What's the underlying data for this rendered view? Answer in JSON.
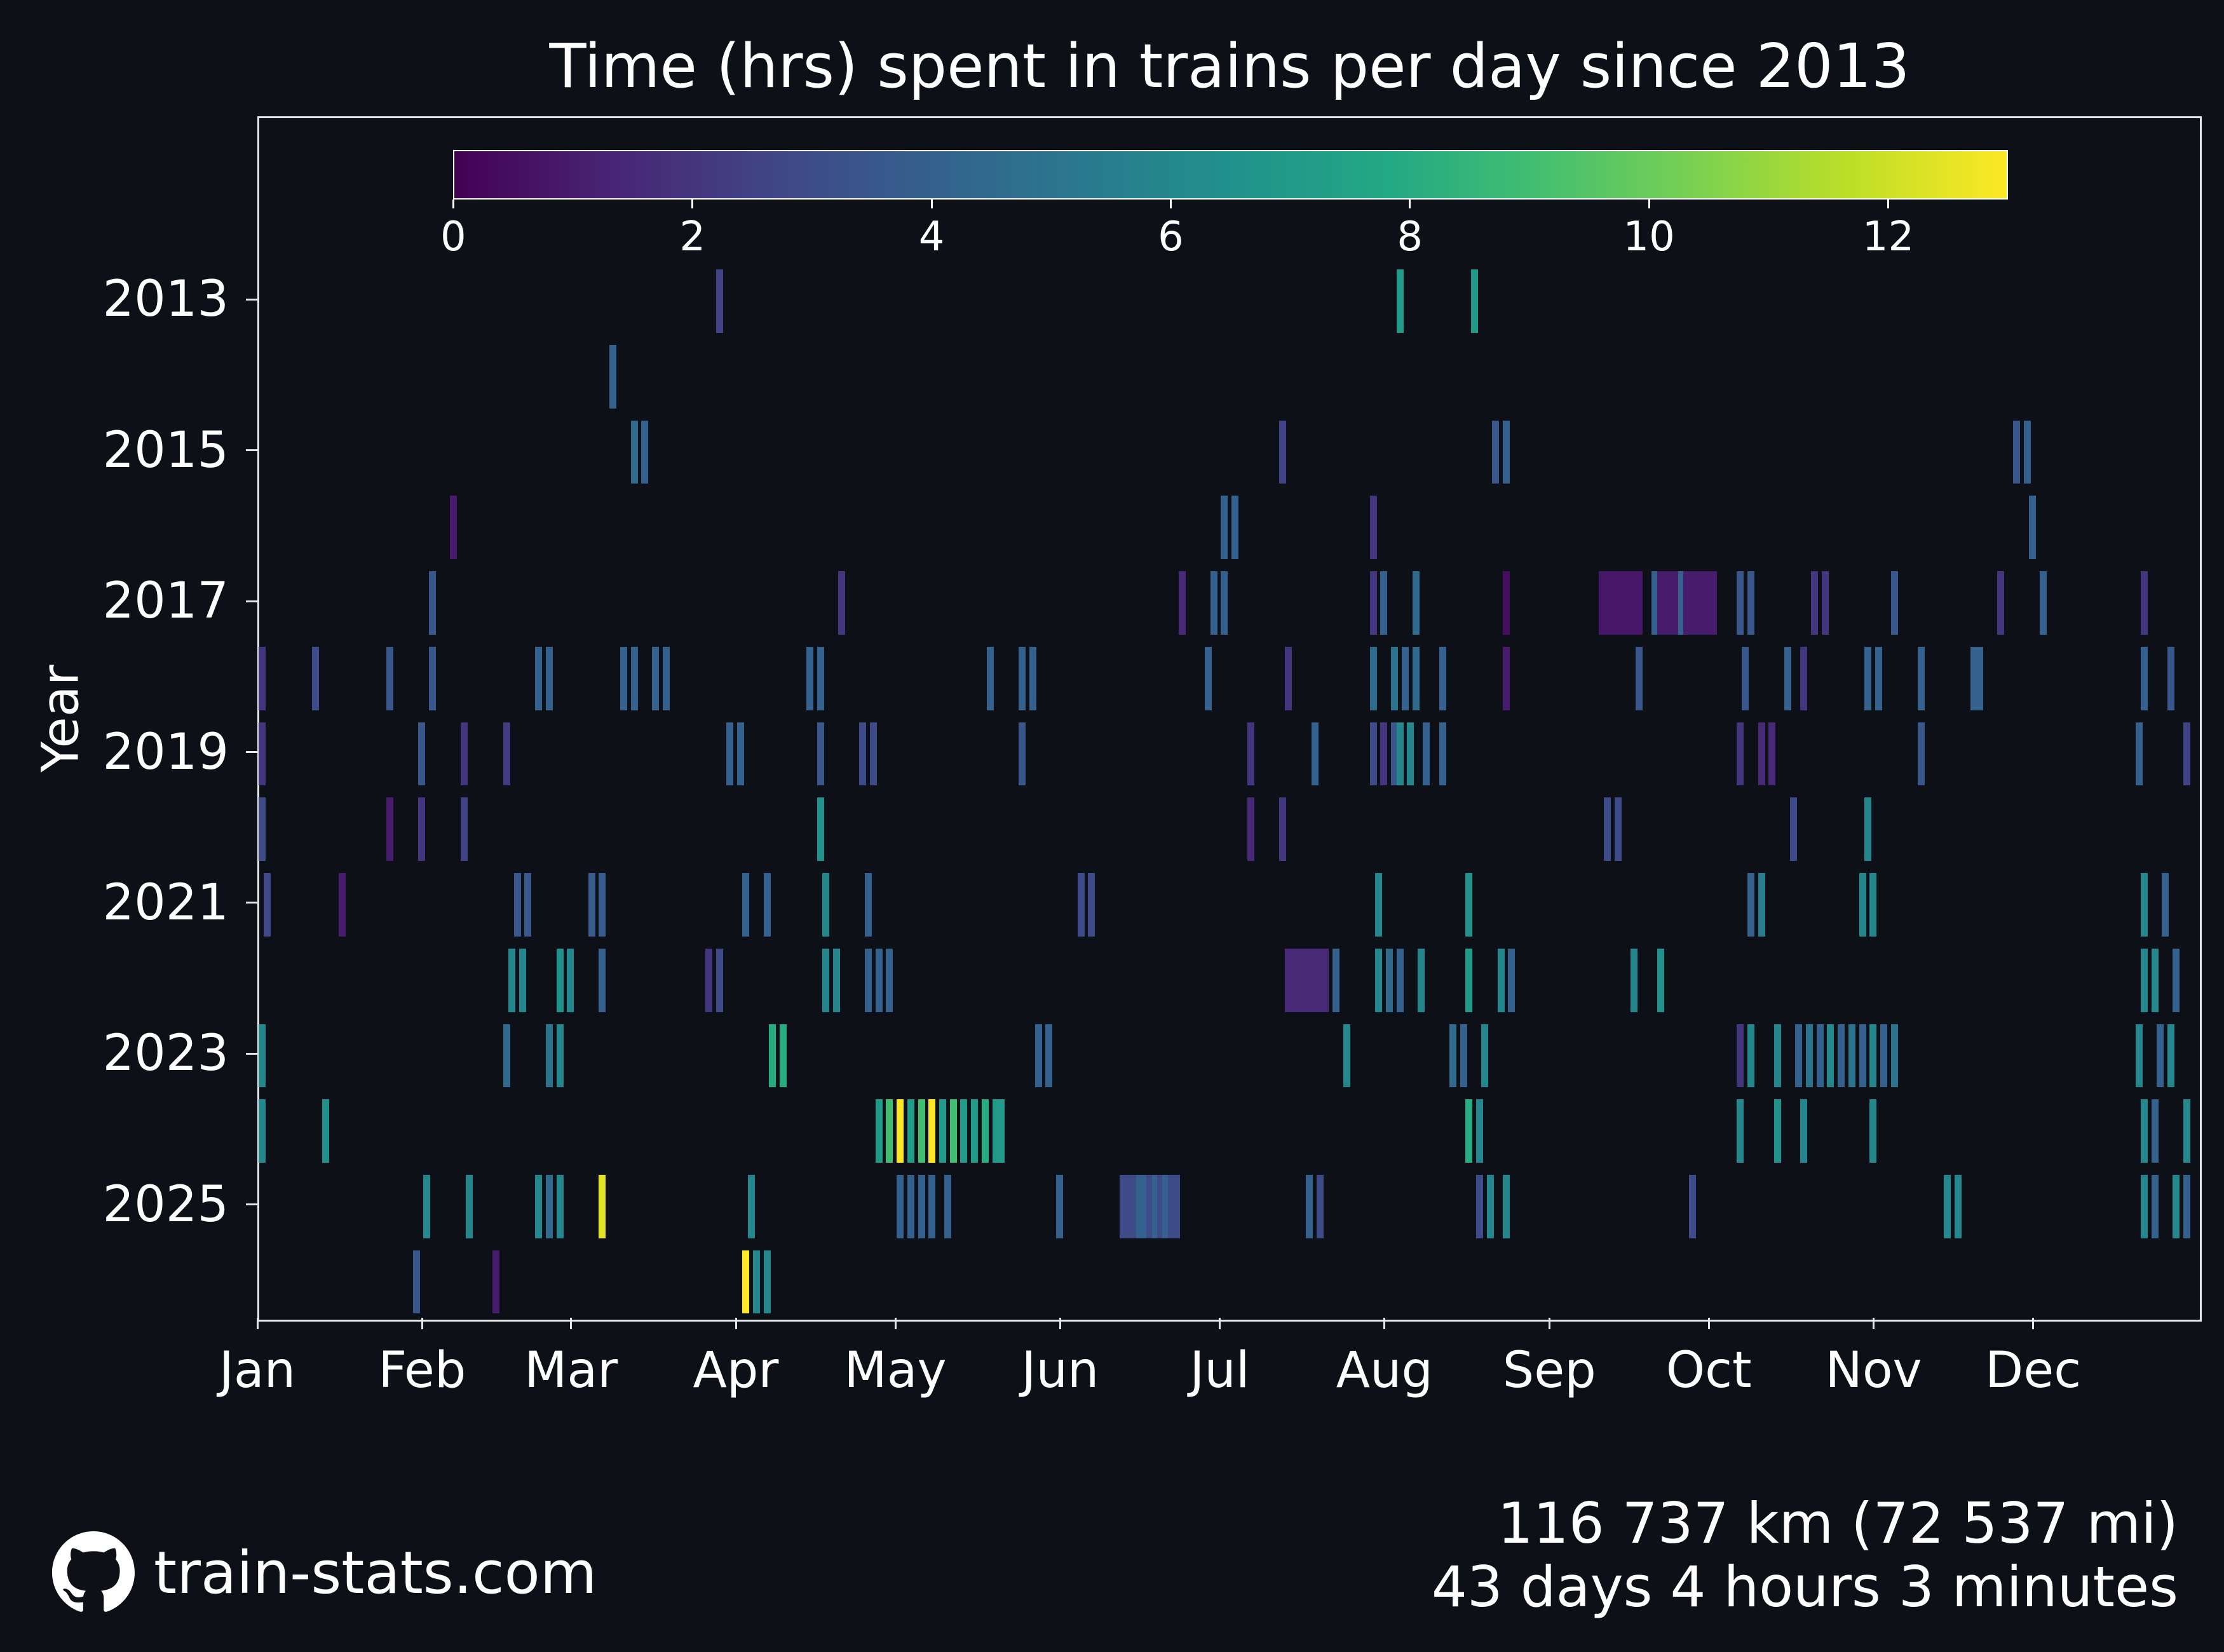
{
  "title": "Time (hrs) spent in trains per day since 2013",
  "y_axis_title": "Year",
  "footer": {
    "brand": "train-stats.com",
    "distance": "116 737 km (72 537 mi)",
    "duration": "43 days 4 hours 3 minutes"
  },
  "colors": {
    "background": "#0d1117",
    "text": "#ffffff",
    "axis": "#e4e6e8"
  },
  "chart_data": {
    "type": "heatmap",
    "title": "Time (hrs) spent in trains per day since 2013",
    "xlabel": "",
    "ylabel": "Year",
    "unit": "hours per day",
    "x_tick_labels": [
      "Jan",
      "Feb",
      "Mar",
      "Apr",
      "May",
      "Jun",
      "Jul",
      "Aug",
      "Sep",
      "Oct",
      "Nov",
      "Dec"
    ],
    "y_tick_labels": [
      "2013",
      "2015",
      "2017",
      "2019",
      "2021",
      "2023",
      "2025"
    ],
    "years": [
      2013,
      2014,
      2015,
      2016,
      2017,
      2018,
      2019,
      2020,
      2021,
      2022,
      2023,
      2024,
      2025,
      2026
    ],
    "colormap": "viridis",
    "colormap_stops": [
      [
        0.0,
        "#440154"
      ],
      [
        0.1,
        "#482475"
      ],
      [
        0.2,
        "#414487"
      ],
      [
        0.3,
        "#355f8d"
      ],
      [
        0.4,
        "#2a788e"
      ],
      [
        0.5,
        "#21918c"
      ],
      [
        0.6,
        "#22a884"
      ],
      [
        0.7,
        "#44bf70"
      ],
      [
        0.8,
        "#7ad151"
      ],
      [
        0.9,
        "#bddf26"
      ],
      [
        1.0,
        "#fde725"
      ]
    ],
    "colorbar": {
      "min": 0,
      "max": 13,
      "ticks": [
        0,
        2,
        4,
        6,
        8,
        10,
        12
      ]
    },
    "legend_position": "top-inside",
    "grid": false,
    "series": [
      {
        "year": 2013,
        "days": [
          [
            87,
            2.5
          ],
          [
            215,
            7
          ],
          [
            229,
            7
          ]
        ]
      },
      {
        "year": 2014,
        "days": [
          [
            67,
            4
          ]
        ]
      },
      {
        "year": 2015,
        "days": [
          [
            71,
            4.5
          ],
          [
            73,
            4
          ],
          [
            193,
            2.5
          ],
          [
            233,
            3.5
          ],
          [
            235,
            4
          ],
          [
            331,
            3.5
          ],
          [
            333,
            4
          ]
        ]
      },
      {
        "year": 2016,
        "days": [
          [
            37,
            1
          ],
          [
            182,
            4
          ],
          [
            184,
            4
          ],
          [
            210,
            2
          ],
          [
            334,
            4
          ]
        ]
      },
      {
        "year": 2017,
        "days": [
          [
            33,
            3.5
          ],
          [
            110,
            2
          ],
          [
            174,
            1.5
          ],
          [
            180,
            4
          ],
          [
            182,
            4
          ],
          [
            210,
            2
          ],
          [
            212,
            4
          ],
          [
            218,
            4.5
          ],
          [
            235,
            0.5
          ],
          [
            253,
            0.8
          ],
          [
            254,
            0.8
          ],
          [
            255,
            0.8
          ],
          [
            256,
            0.8
          ],
          [
            257,
            0.8
          ],
          [
            258,
            0.8
          ],
          [
            259,
            0.8
          ],
          [
            260,
            0.8
          ],
          [
            263,
            4
          ],
          [
            264,
            1
          ],
          [
            265,
            1
          ],
          [
            266,
            1
          ],
          [
            267,
            1
          ],
          [
            268,
            4
          ],
          [
            269,
            1
          ],
          [
            270,
            1
          ],
          [
            271,
            1
          ],
          [
            272,
            1
          ],
          [
            273,
            1
          ],
          [
            274,
            1
          ],
          [
            279,
            3.5
          ],
          [
            281,
            3.5
          ],
          [
            293,
            2
          ],
          [
            295,
            2
          ],
          [
            308,
            3.5
          ],
          [
            328,
            2
          ],
          [
            336,
            4
          ],
          [
            355,
            2
          ]
        ]
      },
      {
        "year": 2018,
        "days": [
          [
            1,
            2
          ],
          [
            11,
            3
          ],
          [
            25,
            3.5
          ],
          [
            33,
            3.5
          ],
          [
            53,
            4
          ],
          [
            55,
            4
          ],
          [
            69,
            4
          ],
          [
            71,
            4
          ],
          [
            75,
            4
          ],
          [
            77,
            4
          ],
          [
            104,
            4
          ],
          [
            106,
            4
          ],
          [
            138,
            4
          ],
          [
            144,
            4
          ],
          [
            146,
            4
          ],
          [
            179,
            4
          ],
          [
            194,
            2
          ],
          [
            210,
            4.5
          ],
          [
            214,
            5
          ],
          [
            216,
            4
          ],
          [
            218,
            4.5
          ],
          [
            223,
            4
          ],
          [
            235,
            1
          ],
          [
            260,
            3.5
          ],
          [
            280,
            3.5
          ],
          [
            288,
            4
          ],
          [
            291,
            2
          ],
          [
            303,
            4
          ],
          [
            305,
            4
          ],
          [
            313,
            4
          ],
          [
            323,
            4
          ],
          [
            324,
            4
          ],
          [
            355,
            4
          ],
          [
            360,
            3.5
          ]
        ]
      },
      {
        "year": 2019,
        "days": [
          [
            1,
            2
          ],
          [
            31,
            3.5
          ],
          [
            39,
            2
          ],
          [
            47,
            2.2
          ],
          [
            89,
            4
          ],
          [
            91,
            4
          ],
          [
            106,
            3.5
          ],
          [
            114,
            3
          ],
          [
            116,
            3
          ],
          [
            144,
            3.5
          ],
          [
            187,
            2
          ],
          [
            199,
            4
          ],
          [
            210,
            3
          ],
          [
            212,
            2
          ],
          [
            214,
            3.5
          ],
          [
            215,
            6
          ],
          [
            217,
            6
          ],
          [
            220,
            4
          ],
          [
            223,
            4
          ],
          [
            279,
            2
          ],
          [
            283,
            1.5
          ],
          [
            285,
            1.5
          ],
          [
            313,
            3.5
          ],
          [
            354,
            4
          ],
          [
            363,
            2.5
          ]
        ]
      },
      {
        "year": 2020,
        "days": [
          [
            1,
            3
          ],
          [
            25,
            1
          ],
          [
            31,
            2
          ],
          [
            39,
            2.5
          ],
          [
            106,
            6.5
          ],
          [
            187,
            1.5
          ],
          [
            193,
            2
          ],
          [
            254,
            3
          ],
          [
            256,
            3
          ],
          [
            289,
            3
          ],
          [
            303,
            6
          ]
        ]
      },
      {
        "year": 2021,
        "days": [
          [
            2,
            2.8
          ],
          [
            16,
            1
          ],
          [
            49,
            3.5
          ],
          [
            51,
            3.5
          ],
          [
            63,
            3.8
          ],
          [
            65,
            3.8
          ],
          [
            92,
            4
          ],
          [
            96,
            4
          ],
          [
            107,
            6
          ],
          [
            115,
            4
          ],
          [
            155,
            3
          ],
          [
            157,
            3
          ],
          [
            211,
            6
          ],
          [
            228,
            6.5
          ],
          [
            281,
            4
          ],
          [
            283,
            5.5
          ],
          [
            302,
            6
          ],
          [
            304,
            6
          ],
          [
            355,
            6
          ],
          [
            359,
            4
          ]
        ]
      },
      {
        "year": 2022,
        "days": [
          [
            48,
            6
          ],
          [
            50,
            6
          ],
          [
            57,
            6.5
          ],
          [
            59,
            6
          ],
          [
            65,
            4
          ],
          [
            85,
            2
          ],
          [
            87,
            3
          ],
          [
            107,
            6
          ],
          [
            109,
            6
          ],
          [
            115,
            4
          ],
          [
            117,
            4
          ],
          [
            119,
            4
          ],
          [
            194,
            1.5
          ],
          [
            195,
            1.5
          ],
          [
            196,
            1.5
          ],
          [
            197,
            1.5
          ],
          [
            198,
            1.5
          ],
          [
            199,
            1.5
          ],
          [
            200,
            1.5
          ],
          [
            201,
            1.5
          ],
          [
            203,
            4
          ],
          [
            211,
            6
          ],
          [
            213,
            4.5
          ],
          [
            215,
            4
          ],
          [
            219,
            6
          ],
          [
            228,
            7
          ],
          [
            234,
            6
          ],
          [
            236,
            4
          ],
          [
            259,
            6
          ],
          [
            264,
            6.5
          ],
          [
            355,
            6
          ],
          [
            357,
            6
          ],
          [
            361,
            4
          ]
        ]
      },
      {
        "year": 2023,
        "days": [
          [
            1,
            6
          ],
          [
            47,
            4.5
          ],
          [
            55,
            5
          ],
          [
            57,
            6
          ],
          [
            97,
            8
          ],
          [
            99,
            8
          ],
          [
            147,
            4
          ],
          [
            149,
            4
          ],
          [
            205,
            6
          ],
          [
            225,
            4.5
          ],
          [
            227,
            4
          ],
          [
            231,
            6
          ],
          [
            279,
            2
          ],
          [
            281,
            6
          ],
          [
            286,
            6
          ],
          [
            290,
            4
          ],
          [
            292,
            5
          ],
          [
            294,
            4
          ],
          [
            296,
            6
          ],
          [
            298,
            4
          ],
          [
            300,
            5
          ],
          [
            302,
            4
          ],
          [
            304,
            6
          ],
          [
            306,
            4
          ],
          [
            308,
            5
          ],
          [
            354,
            6
          ],
          [
            358,
            4
          ],
          [
            360,
            6
          ]
        ]
      },
      {
        "year": 2024,
        "days": [
          [
            1,
            6
          ],
          [
            13,
            6.5
          ],
          [
            117,
            7
          ],
          [
            119,
            9
          ],
          [
            121,
            13
          ],
          [
            123,
            7
          ],
          [
            125,
            9
          ],
          [
            127,
            13
          ],
          [
            129,
            7
          ],
          [
            131,
            9
          ],
          [
            133,
            7
          ],
          [
            135,
            7
          ],
          [
            137,
            8
          ],
          [
            139,
            7
          ],
          [
            140,
            7
          ],
          [
            228,
            8
          ],
          [
            230,
            6
          ],
          [
            279,
            6
          ],
          [
            286,
            6.5
          ],
          [
            291,
            6
          ],
          [
            304,
            6
          ],
          [
            355,
            6
          ],
          [
            357,
            4
          ],
          [
            363,
            6
          ]
        ]
      },
      {
        "year": 2025,
        "days": [
          [
            32,
            6
          ],
          [
            40,
            6
          ],
          [
            53,
            6
          ],
          [
            55,
            4.5
          ],
          [
            57,
            6
          ],
          [
            65,
            12.5
          ],
          [
            93,
            6
          ],
          [
            121,
            4
          ],
          [
            123,
            4
          ],
          [
            125,
            4
          ],
          [
            127,
            4
          ],
          [
            130,
            4
          ],
          [
            151,
            4
          ],
          [
            163,
            3
          ],
          [
            164,
            3
          ],
          [
            165,
            3
          ],
          [
            166,
            4
          ],
          [
            167,
            4
          ],
          [
            168,
            3
          ],
          [
            169,
            4
          ],
          [
            170,
            3
          ],
          [
            171,
            4
          ],
          [
            172,
            3
          ],
          [
            173,
            3
          ],
          [
            198,
            4
          ],
          [
            200,
            3
          ],
          [
            230,
            3
          ],
          [
            232,
            6
          ],
          [
            235,
            6
          ],
          [
            270,
            3
          ],
          [
            318,
            6
          ],
          [
            320,
            6
          ],
          [
            355,
            6
          ],
          [
            357,
            4
          ],
          [
            361,
            6
          ],
          [
            363,
            4
          ]
        ]
      },
      {
        "year": 2026,
        "days": [
          [
            30,
            3.5
          ],
          [
            45,
            1
          ],
          [
            92,
            13
          ],
          [
            94,
            6
          ],
          [
            96,
            6
          ]
        ]
      }
    ]
  }
}
